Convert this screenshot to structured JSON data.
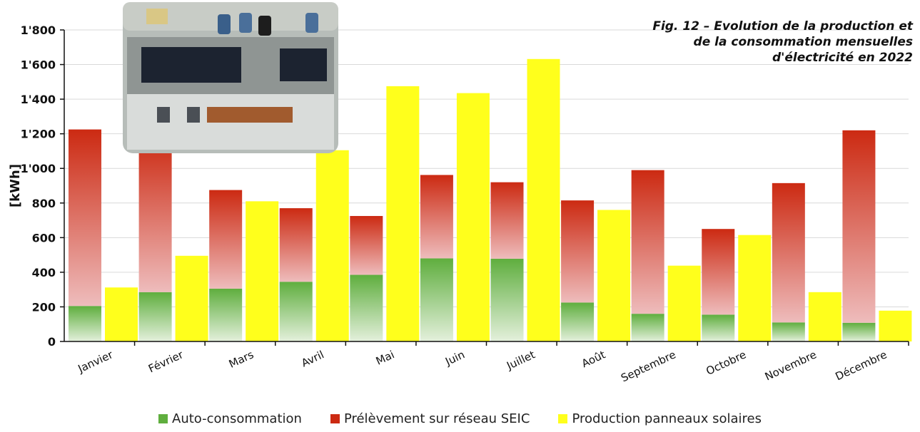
{
  "colors": {
    "auto_top": "#5fae3e",
    "auto_bottom": "#e4f0dc",
    "reseau_top": "#cc2a12",
    "reseau_bottom": "#eebcbc",
    "solaire": "#ffff1c",
    "grid": "#d9d9d9",
    "axis": "#111111"
  },
  "figure": {
    "title_lines": [
      "Fig. 12 – Evolution de la production et",
      "de la consommation mensuelles",
      "d'électricité en 2022"
    ],
    "photo_icon": "building-rooftop-solar-photo"
  },
  "chart_data": {
    "type": "bar",
    "title": "Fig. 12 – Evolution de la production et de la consommation mensuelles d'électricité en 2022",
    "ylabel": "[kWh]",
    "ylim": [
      0,
      1800
    ],
    "yticks": [
      0,
      200,
      400,
      600,
      800,
      1000,
      1200,
      1400,
      1600,
      1800
    ],
    "ytick_labels": [
      "0",
      "200",
      "400",
      "600",
      "800",
      "1'000",
      "1'200",
      "1'400",
      "1'600",
      "1'800"
    ],
    "grid": true,
    "legend_position": "bottom",
    "categories": [
      "Janvier",
      "Février",
      "Mars",
      "Avril",
      "Mai",
      "Juin",
      "Juillet",
      "Août",
      "Septembre",
      "Octobre",
      "Novembre",
      "Décembre"
    ],
    "series": [
      {
        "name": "Auto-consommation",
        "stack": "consommation",
        "values": [
          205,
          285,
          305,
          345,
          385,
          480,
          478,
          225,
          160,
          155,
          110,
          108
        ]
      },
      {
        "name": "Prélèvement sur réseau SEIC",
        "stack": "consommation",
        "values": [
          1020,
          895,
          570,
          425,
          340,
          482,
          442,
          590,
          830,
          495,
          805,
          1112
        ]
      },
      {
        "name": "Production panneaux solaires",
        "stack": "production",
        "values": [
          312,
          495,
          810,
          1105,
          1475,
          1435,
          1632,
          760,
          438,
          615,
          285,
          178
        ]
      }
    ]
  }
}
